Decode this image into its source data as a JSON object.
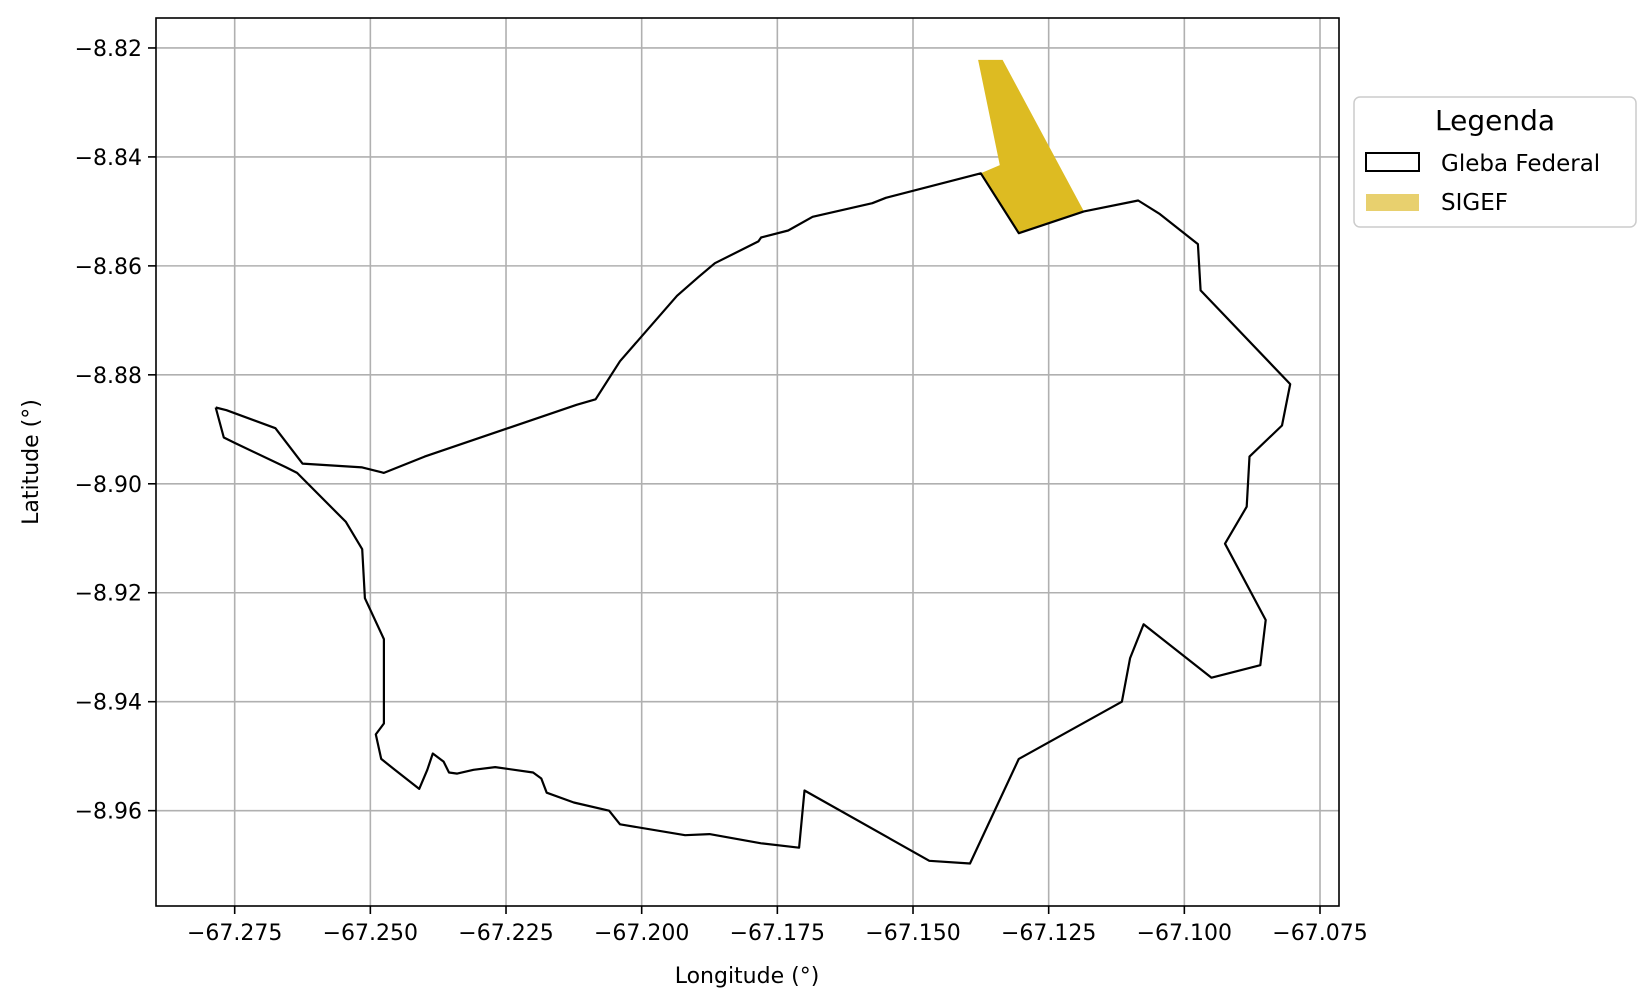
{
  "chart_data": {
    "type": "map",
    "xlabel": "Longitude (°)",
    "ylabel": "Latitude (°)",
    "xlim": [
      -67.2895,
      -67.0715
    ],
    "ylim": [
      -8.9775,
      -8.8145
    ],
    "grid": true,
    "x_ticks": [
      -67.275,
      -67.25,
      -67.225,
      -67.2,
      -67.175,
      -67.15,
      -67.125,
      -67.1,
      -67.075
    ],
    "x_tick_labels": [
      "−67.275",
      "−67.250",
      "−67.225",
      "−67.200",
      "−67.175",
      "−67.150",
      "−67.125",
      "−67.100",
      "−67.075"
    ],
    "y_ticks": [
      -8.82,
      -8.84,
      -8.86,
      -8.88,
      -8.9,
      -8.92,
      -8.94,
      -8.96
    ],
    "y_tick_labels": [
      "−8.82",
      "−8.84",
      "−8.86",
      "−8.88",
      "−8.90",
      "−8.92",
      "−8.94",
      "−8.96"
    ],
    "legend": {
      "title": "Legenda",
      "placement": "outside-right-top",
      "entries": [
        {
          "label": "Gleba Federal",
          "style": "outline",
          "color": "#000000"
        },
        {
          "label": "SIGEF",
          "style": "fill",
          "color": "#E8D06E"
        }
      ]
    },
    "layers": [
      {
        "name": "Gleba Federal",
        "style": "outline",
        "stroke": "#000000",
        "fill": "none",
        "coordinates": [
          [
            -67.2785,
            -8.886
          ],
          [
            -67.2765,
            -8.8865
          ],
          [
            -67.2675,
            -8.8898
          ],
          [
            -67.2625,
            -8.8963
          ],
          [
            -67.2515,
            -8.897
          ],
          [
            -67.2475,
            -8.898
          ],
          [
            -67.24,
            -8.895
          ],
          [
            -67.212,
            -8.8855
          ],
          [
            -67.2085,
            -8.8845
          ],
          [
            -67.204,
            -8.8775
          ],
          [
            -67.1935,
            -8.8655
          ],
          [
            -67.1895,
            -8.862
          ],
          [
            -67.1865,
            -8.8595
          ],
          [
            -67.1785,
            -8.8555
          ],
          [
            -67.178,
            -8.8548
          ],
          [
            -67.173,
            -8.8535
          ],
          [
            -67.1685,
            -8.851
          ],
          [
            -67.1575,
            -8.8485
          ],
          [
            -67.155,
            -8.8475
          ],
          [
            -67.1375,
            -8.843
          ],
          [
            -67.1305,
            -8.854
          ],
          [
            -67.1185,
            -8.85
          ],
          [
            -67.1085,
            -8.848
          ],
          [
            -67.1045,
            -8.8505
          ],
          [
            -67.0975,
            -8.856
          ],
          [
            -67.097,
            -8.8645
          ],
          [
            -67.0805,
            -8.8817
          ],
          [
            -67.082,
            -8.8893
          ],
          [
            -67.088,
            -8.895
          ],
          [
            -67.0885,
            -8.9042
          ],
          [
            -67.0925,
            -8.911
          ],
          [
            -67.085,
            -8.925
          ],
          [
            -67.086,
            -8.9333
          ],
          [
            -67.095,
            -8.9356
          ],
          [
            -67.1075,
            -8.9258
          ],
          [
            -67.11,
            -8.932
          ],
          [
            -67.1115,
            -8.94
          ],
          [
            -67.1305,
            -8.9505
          ],
          [
            -67.1395,
            -8.9697
          ],
          [
            -67.147,
            -8.9692
          ],
          [
            -67.17,
            -8.9563
          ],
          [
            -67.171,
            -8.9668
          ],
          [
            -67.178,
            -8.966
          ],
          [
            -67.1875,
            -8.9643
          ],
          [
            -67.192,
            -8.9645
          ],
          [
            -67.204,
            -8.9625
          ],
          [
            -67.206,
            -8.96
          ],
          [
            -67.2125,
            -8.9585
          ],
          [
            -67.2175,
            -8.9567
          ],
          [
            -67.2185,
            -8.9541
          ],
          [
            -67.22,
            -8.953
          ],
          [
            -67.227,
            -8.952
          ],
          [
            -67.231,
            -8.9525
          ],
          [
            -67.234,
            -8.9532
          ],
          [
            -67.2355,
            -8.953
          ],
          [
            -67.2365,
            -8.951
          ],
          [
            -67.2385,
            -8.9495
          ],
          [
            -67.2395,
            -8.9525
          ],
          [
            -67.241,
            -8.956
          ],
          [
            -67.2455,
            -8.9525
          ],
          [
            -67.248,
            -8.9505
          ],
          [
            -67.249,
            -8.946
          ],
          [
            -67.2475,
            -8.944
          ],
          [
            -67.2475,
            -8.9285
          ],
          [
            -67.251,
            -8.921
          ],
          [
            -67.2515,
            -8.912
          ],
          [
            -67.2545,
            -8.907
          ],
          [
            -67.2635,
            -8.898
          ],
          [
            -67.2655,
            -8.897
          ],
          [
            -67.275,
            -8.8925
          ],
          [
            -67.277,
            -8.8915
          ],
          [
            -67.2785,
            -8.886
          ]
        ]
      },
      {
        "name": "SIGEF",
        "style": "fill",
        "fill": "#DDBB22",
        "stroke": "none",
        "coordinates": [
          [
            -67.138,
            -8.8222
          ],
          [
            -67.1335,
            -8.8222
          ],
          [
            -67.1185,
            -8.85
          ],
          [
            -67.1305,
            -8.854
          ],
          [
            -67.1375,
            -8.843
          ],
          [
            -67.134,
            -8.8415
          ]
        ]
      }
    ]
  }
}
